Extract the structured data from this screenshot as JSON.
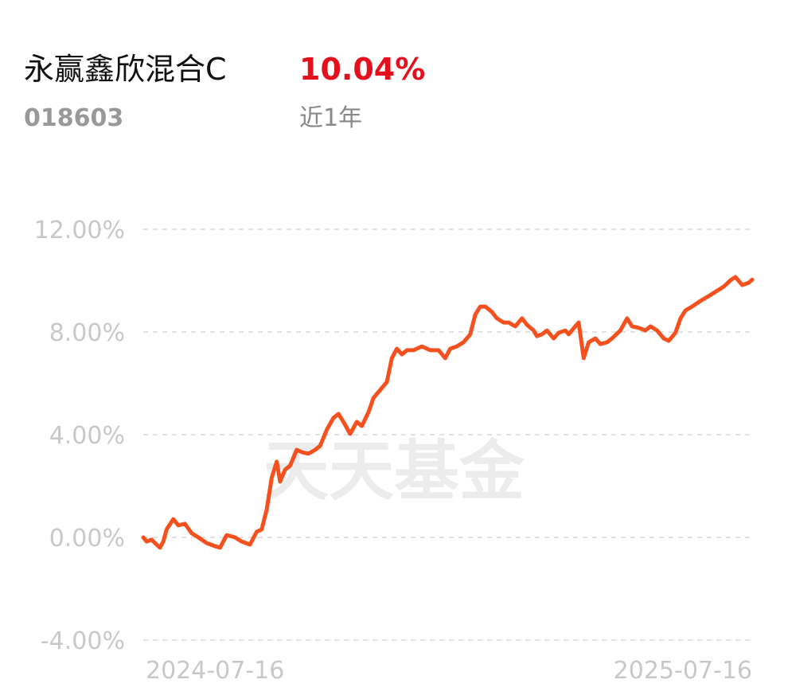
{
  "header": {
    "name": "永赢鑫欣混合C",
    "return": "10.04%",
    "code": "018603",
    "period": "近1年"
  },
  "chart_data": {
    "type": "line",
    "watermark": "天天基金",
    "x": [
      0,
      2,
      5,
      7,
      10,
      12,
      14,
      18,
      21,
      25,
      29,
      33,
      38,
      43,
      46,
      50,
      55,
      59,
      64,
      68,
      71,
      74,
      77,
      80,
      82,
      85,
      88,
      92,
      95,
      99,
      103,
      106,
      110,
      114,
      117,
      120,
      124,
      128,
      131,
      135,
      138,
      142,
      146,
      149,
      152,
      155,
      158,
      162,
      167,
      172,
      177,
      181,
      184,
      188,
      192,
      196,
      199,
      202,
      205,
      209,
      212,
      216,
      219,
      223,
      227,
      230,
      234,
      236,
      239,
      242,
      246,
      249,
      253,
      255,
      259,
      261,
      264,
      267,
      271,
      274,
      278,
      281,
      286,
      290,
      293,
      297,
      301,
      304,
      308,
      312,
      315,
      319,
      322,
      325,
      329,
      334,
      339,
      344,
      348,
      352,
      355,
      359,
      363,
      365
    ],
    "series": [
      {
        "name": "永赢鑫欣混合C",
        "color": "#f4511e",
        "values": [
          0,
          -0.16,
          -0.09,
          -0.22,
          -0.4,
          -0.16,
          0.31,
          0.71,
          0.47,
          0.53,
          0.16,
          0,
          -0.22,
          -0.34,
          -0.4,
          0.09,
          0,
          -0.16,
          -0.28,
          0.22,
          0.31,
          1.09,
          2.33,
          2.95,
          2.17,
          2.64,
          2.79,
          3.41,
          3.32,
          3.26,
          3.41,
          3.57,
          4.19,
          4.65,
          4.81,
          4.5,
          4.03,
          4.5,
          4.34,
          4.87,
          5.43,
          5.74,
          6.05,
          6.98,
          7.35,
          7.13,
          7.29,
          7.29,
          7.44,
          7.29,
          7.29,
          6.98,
          7.35,
          7.44,
          7.6,
          7.91,
          8.68,
          8.99,
          8.99,
          8.78,
          8.53,
          8.37,
          8.37,
          8.22,
          8.53,
          8.28,
          8.06,
          7.84,
          7.91,
          8.06,
          7.75,
          7.97,
          8.06,
          7.91,
          8.22,
          8.37,
          6.98,
          7.6,
          7.75,
          7.53,
          7.6,
          7.75,
          8.06,
          8.53,
          8.22,
          8.16,
          8.06,
          8.22,
          8.06,
          7.75,
          7.66,
          7.97,
          8.53,
          8.84,
          8.99,
          9.21,
          9.4,
          9.61,
          9.77,
          10.02,
          10.14,
          9.83,
          9.92,
          10.04
        ]
      }
    ],
    "xlim": [
      0,
      365
    ],
    "xticks": [
      {
        "value": 0,
        "label": "2024-07-16"
      },
      {
        "value": 365,
        "label": "2025-07-16"
      }
    ],
    "ylim": [
      -4,
      12
    ],
    "yticks": [
      {
        "value": -4,
        "label": "-4.00%"
      },
      {
        "value": 0,
        "label": "0.00%"
      },
      {
        "value": 4,
        "label": "4.00%"
      },
      {
        "value": 8,
        "label": "8.00%"
      },
      {
        "value": 12,
        "label": "12.00%"
      }
    ],
    "grid": true
  }
}
